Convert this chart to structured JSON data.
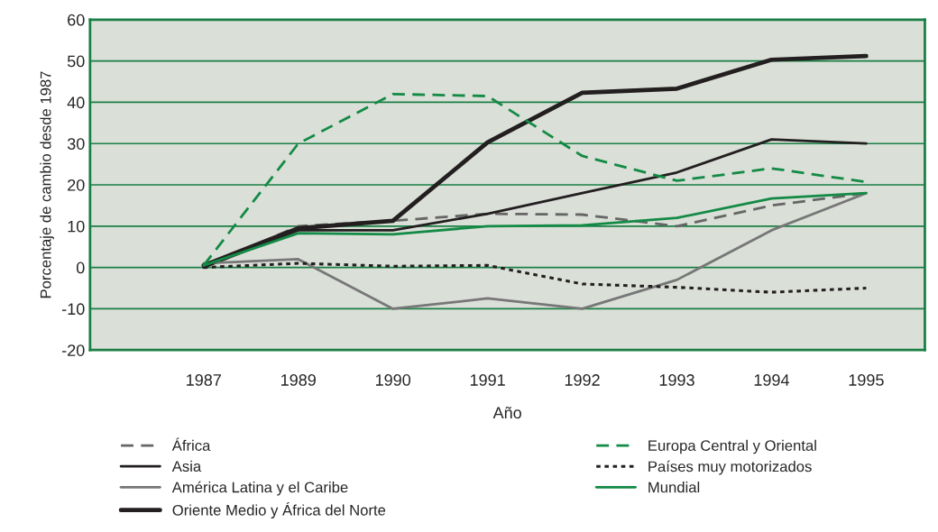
{
  "chart_data": {
    "type": "line",
    "xlabel": "Año",
    "ylabel": "Porcentaje de cambio desde 1987",
    "categories": [
      "1987",
      "1989",
      "1990",
      "1991",
      "1992",
      "1993",
      "1994",
      "1995"
    ],
    "ylim": [
      -20,
      60
    ],
    "yticks": [
      -20,
      -10,
      0,
      10,
      20,
      30,
      40,
      50,
      60
    ],
    "grid": "y",
    "legend": "bottom",
    "marker": "none",
    "series": [
      {
        "name": "África",
        "color": "#666666",
        "line_style": "dashed",
        "values": [
          0,
          10,
          11.3,
          13,
          12.8,
          10,
          15,
          18
        ]
      },
      {
        "name": "Asia",
        "color": "#231f20",
        "line_style": "solid",
        "values": [
          0,
          9,
          9,
          13,
          18,
          23,
          31,
          30
        ]
      },
      {
        "name": "América Latina y el Caribe",
        "color": "#777777",
        "line_style": "solid",
        "values": [
          1,
          2,
          -10,
          -7.5,
          -10,
          -3,
          9,
          18
        ]
      },
      {
        "name": "Oriente Medio y África del Norte",
        "color": "#231f20",
        "line_style": "solid",
        "values": [
          0.5,
          9.5,
          11.3,
          30.3,
          42.3,
          43.3,
          50.3,
          51.2
        ]
      },
      {
        "name": "Europa Central y Oriental",
        "color": "#138a45",
        "line_style": "dashed",
        "values": [
          0.5,
          30,
          42,
          41.5,
          27,
          21,
          24,
          20.7
        ]
      },
      {
        "name": "Países muy motorizados",
        "color": "#231f20",
        "line_style": "dotted",
        "values": [
          0,
          1,
          0.3,
          0.5,
          -4,
          -4.8,
          -6,
          -5
        ]
      },
      {
        "name": "Mundial",
        "color": "#138a45",
        "line_style": "solid",
        "values": [
          0.5,
          8.3,
          8,
          10,
          10.2,
          12,
          16.7,
          18
        ]
      }
    ]
  }
}
